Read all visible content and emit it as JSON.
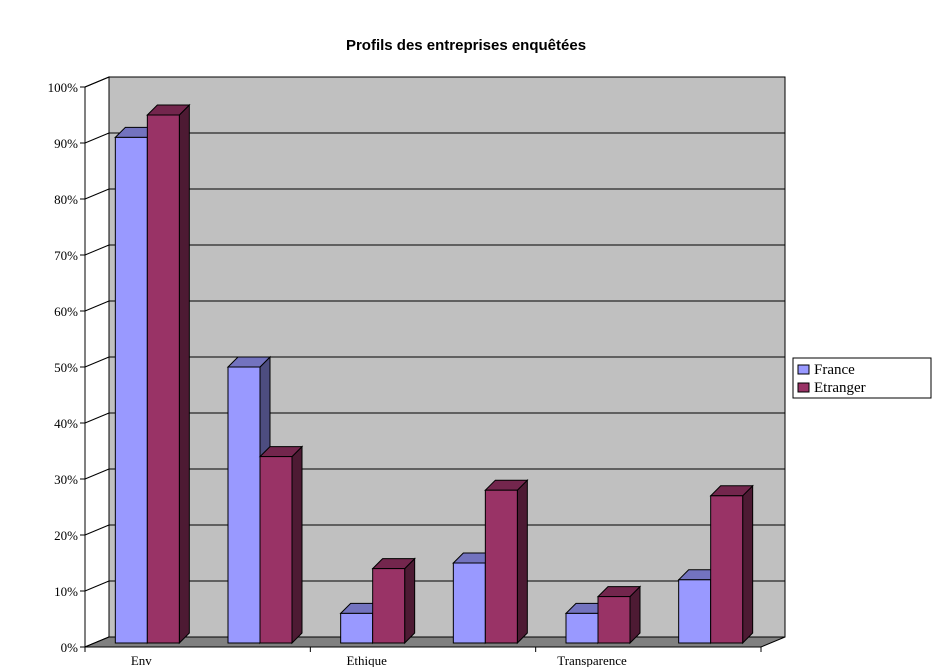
{
  "chart_data": {
    "type": "bar",
    "title": "Profils des entreprises enquêtées",
    "xlabel": "",
    "ylabel": "",
    "ylim": [
      0,
      100
    ],
    "y_unit": "%",
    "y_ticks": [
      "0%",
      "10%",
      "20%",
      "30%",
      "40%",
      "50%",
      "60%",
      "70%",
      "80%",
      "90%",
      "100%"
    ],
    "categories": [
      "Env",
      "",
      "Ethique",
      "",
      "Transparence",
      ""
    ],
    "series": [
      {
        "name": "France",
        "values": [
          91,
          50,
          6,
          15,
          6,
          12
        ],
        "color": "#9999ff"
      },
      {
        "name": "Etranger",
        "values": [
          95,
          34,
          14,
          28,
          9,
          27
        ],
        "color": "#993366"
      }
    ],
    "grid": true,
    "legend_position": "right",
    "plot_background": "#c0c0c0",
    "style": "3d-clustered-column"
  }
}
